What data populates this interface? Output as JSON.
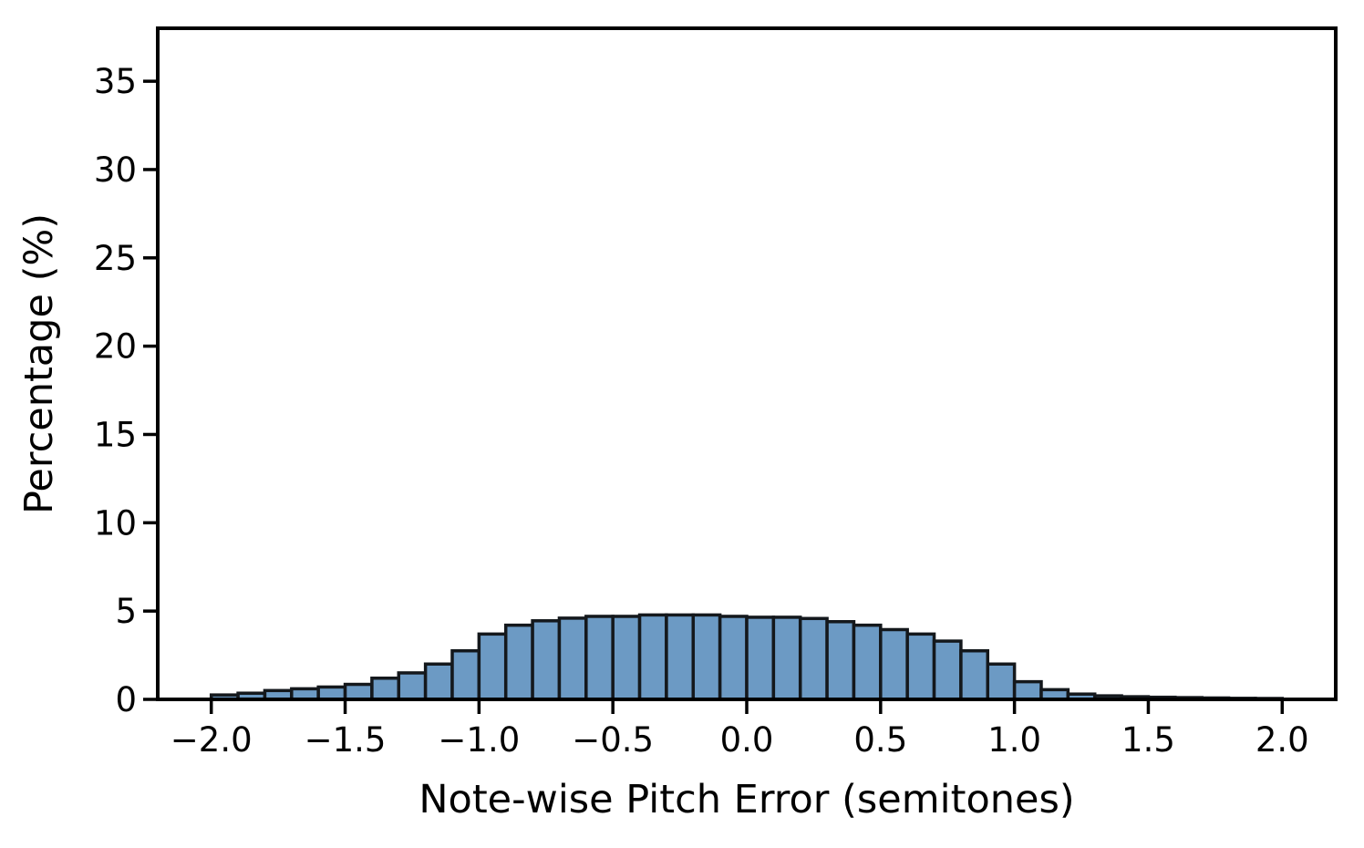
{
  "figure": {
    "background_color": "#ffffff",
    "title": ""
  },
  "chart_data": {
    "type": "bar",
    "subtype": "histogram",
    "title": "",
    "xlabel": "Note-wise Pitch Error (semitones)",
    "ylabel": "Percentage (%)",
    "bin_start": -2.0,
    "bin_width": 0.1,
    "values": [
      0.25,
      0.35,
      0.5,
      0.6,
      0.7,
      0.85,
      1.2,
      1.5,
      2.0,
      2.75,
      3.7,
      4.2,
      4.45,
      4.6,
      4.7,
      4.7,
      4.78,
      4.78,
      4.78,
      4.7,
      4.65,
      4.65,
      4.58,
      4.4,
      4.2,
      3.95,
      3.7,
      3.3,
      2.75,
      2.0,
      1.0,
      0.55,
      0.3,
      0.2,
      0.15,
      0.12,
      0.1,
      0.08,
      0.06,
      0.05
    ],
    "x_ticks": [
      -2.0,
      -1.5,
      -1.0,
      -0.5,
      0.0,
      0.5,
      1.0,
      1.5,
      2.0
    ],
    "x_tick_labels": [
      "−2.0",
      "−1.5",
      "−1.0",
      "−0.5",
      "0.0",
      "0.5",
      "1.0",
      "1.5",
      "2.0"
    ],
    "y_ticks": [
      0,
      5,
      10,
      15,
      20,
      25,
      30,
      35
    ],
    "y_tick_labels": [
      "0",
      "5",
      "10",
      "15",
      "20",
      "25",
      "30",
      "35"
    ],
    "xlim": [
      -2.2,
      2.2
    ],
    "ylim": [
      0,
      38
    ],
    "grid": false,
    "legend": null,
    "bar_color": "#6c9ac4",
    "bar_edge_color": "#14181c",
    "axis_color": "#000000",
    "text_color": "#000000"
  }
}
